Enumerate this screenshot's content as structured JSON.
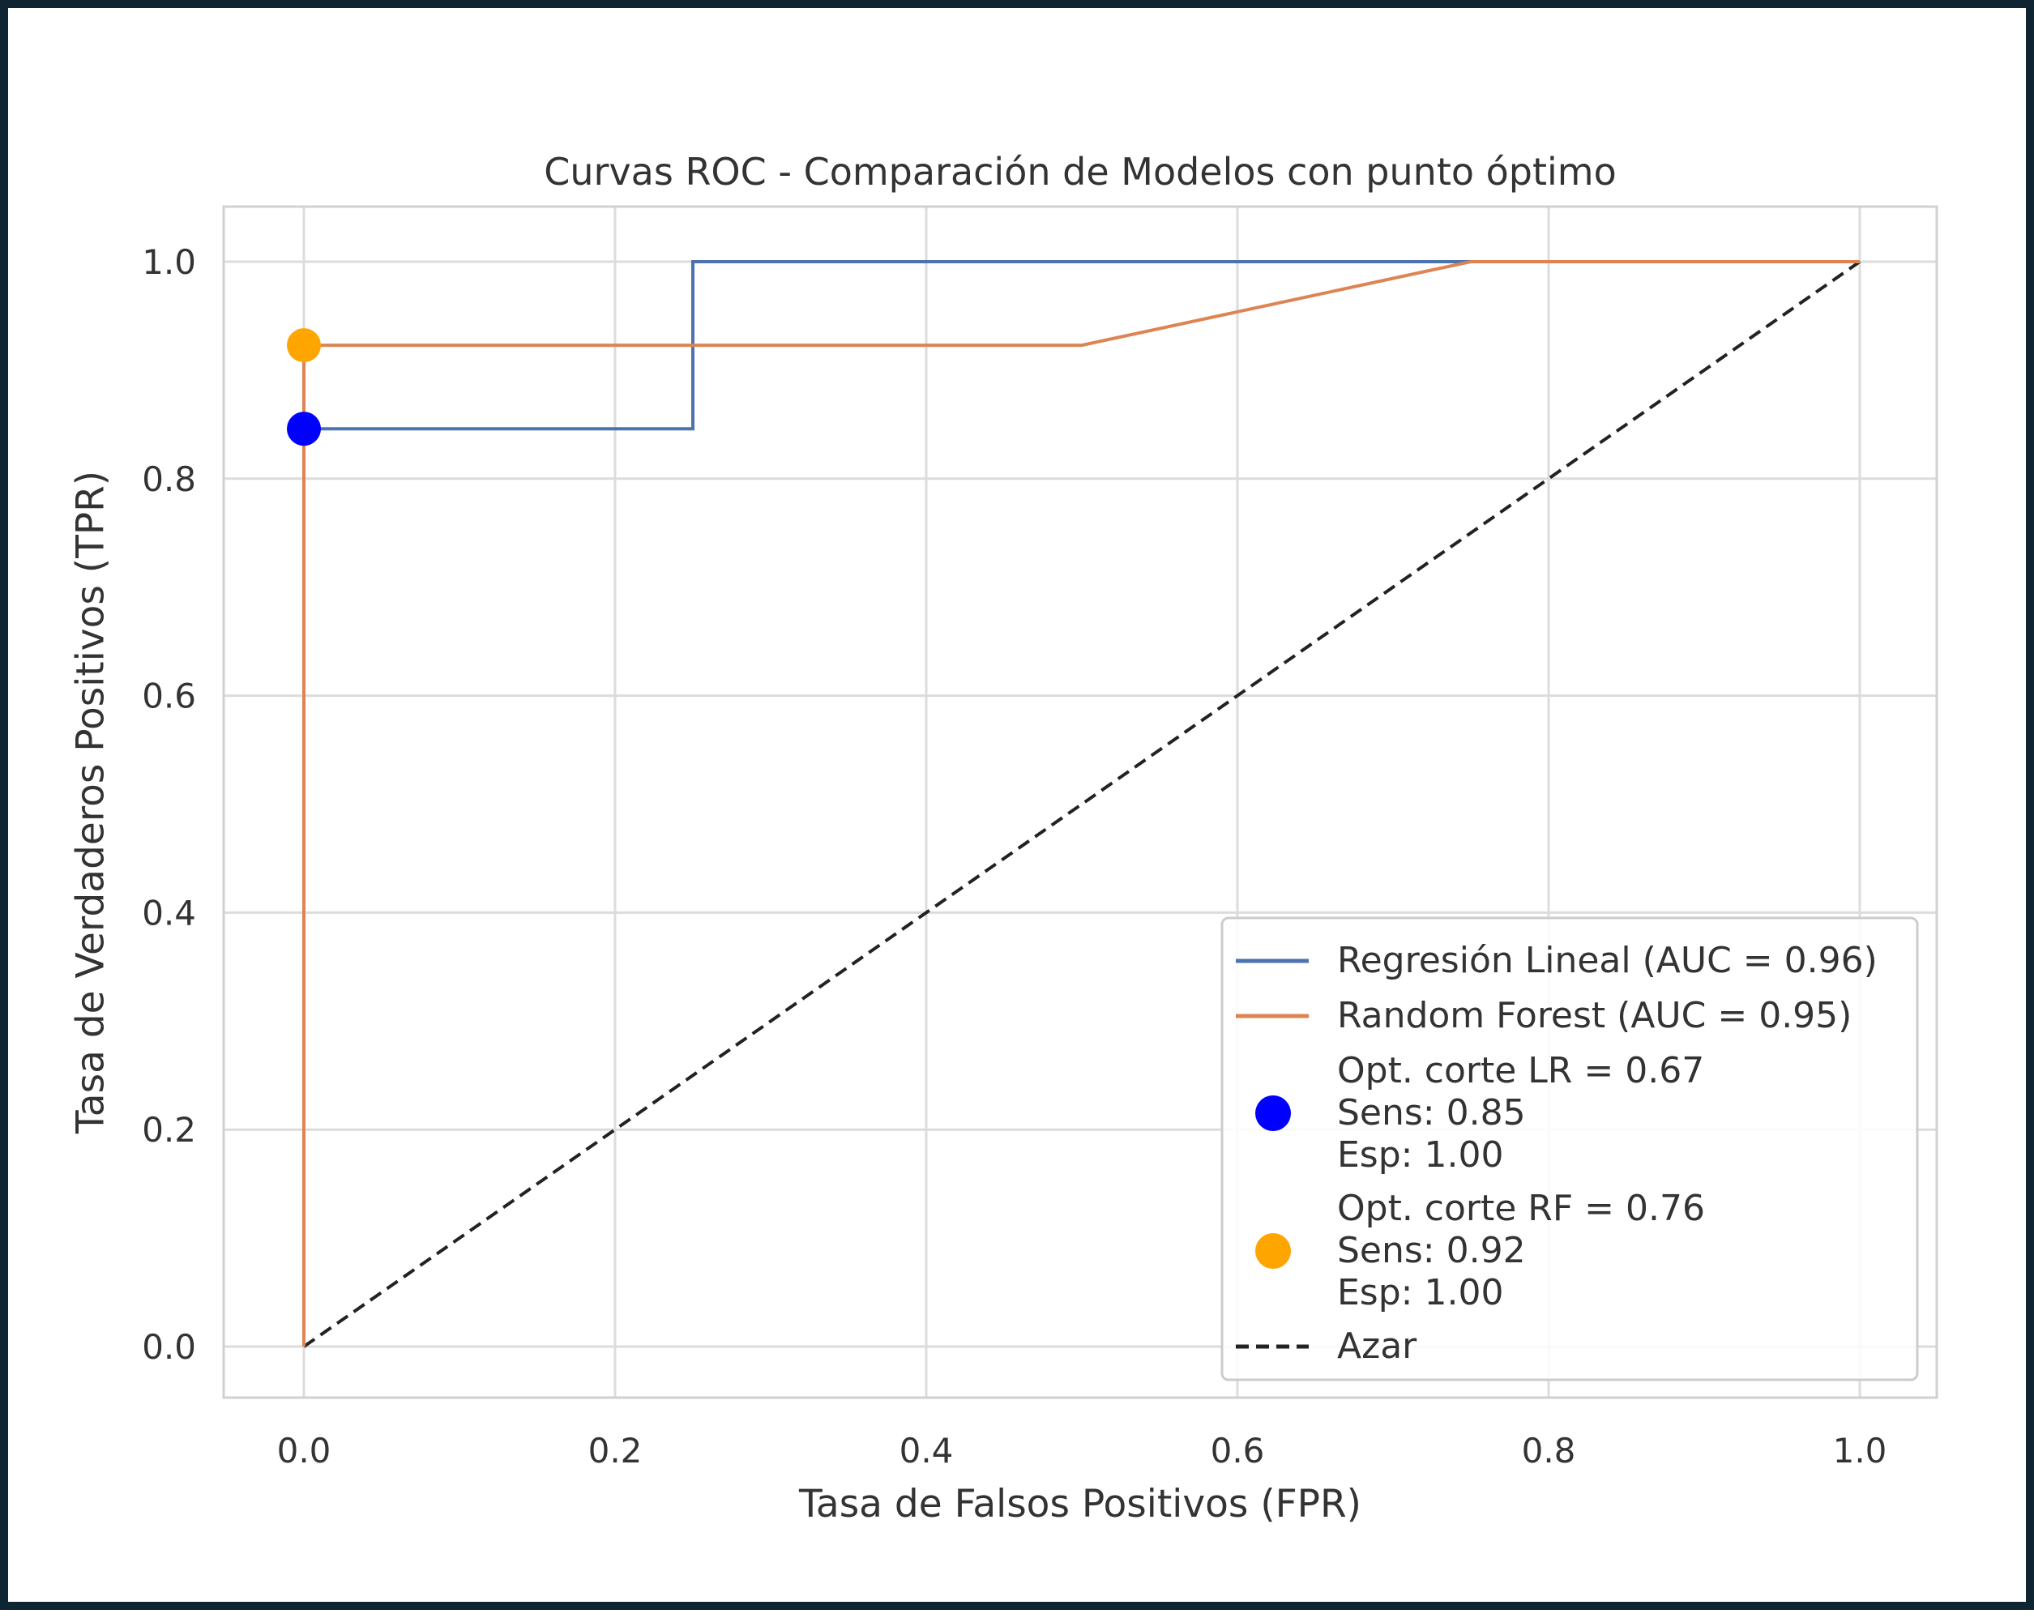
{
  "chart_data": {
    "type": "line",
    "title": "Curvas ROC - Comparación de Modelos con punto óptimo",
    "xlabel": "Tasa de Falsos Positivos (FPR)",
    "ylabel": "Tasa de Verdaderos Positivos (TPR)",
    "xlim": [
      -0.05,
      1.05
    ],
    "ylim": [
      -0.05,
      1.05
    ],
    "x_ticks": [
      0.0,
      0.2,
      0.4,
      0.6,
      0.8,
      1.0
    ],
    "y_ticks": [
      0.0,
      0.2,
      0.4,
      0.6,
      0.8,
      1.0
    ],
    "x_tick_labels": [
      "0.0",
      "0.2",
      "0.4",
      "0.6",
      "0.8",
      "1.0"
    ],
    "y_tick_labels": [
      "0.0",
      "0.2",
      "0.4",
      "0.6",
      "0.8",
      "1.0"
    ],
    "grid": true,
    "legend_position": "lower-right",
    "series": [
      {
        "name": "Regresión Lineal (AUC = 0.96)",
        "kind": "line",
        "style": "solid",
        "color": "#4c72b0",
        "x": [
          0.0,
          0.0,
          0.0,
          0.25,
          0.25,
          1.0
        ],
        "y": [
          0.0,
          0.846,
          0.846,
          0.846,
          1.0,
          1.0
        ]
      },
      {
        "name": "Random Forest (AUC = 0.95)",
        "kind": "line",
        "style": "solid",
        "color": "#dd8452",
        "x": [
          0.0,
          0.0,
          0.5,
          0.75,
          1.0
        ],
        "y": [
          0.0,
          0.923,
          0.923,
          1.0,
          1.0
        ]
      },
      {
        "name": "Opt. corte LR = 0.67\nSens: 0.85\nEsp: 1.00",
        "kind": "point",
        "color": "#0000ff",
        "x": [
          0.0
        ],
        "y": [
          0.846
        ]
      },
      {
        "name": "Opt. corte RF = 0.76\nSens: 0.92\nEsp: 1.00",
        "kind": "point",
        "color": "#ffa500",
        "x": [
          0.0
        ],
        "y": [
          0.923
        ]
      },
      {
        "name": "Azar",
        "kind": "line",
        "style": "dashed",
        "color": "#222222",
        "x": [
          0.0,
          1.0
        ],
        "y": [
          0.0,
          1.0
        ]
      }
    ]
  }
}
